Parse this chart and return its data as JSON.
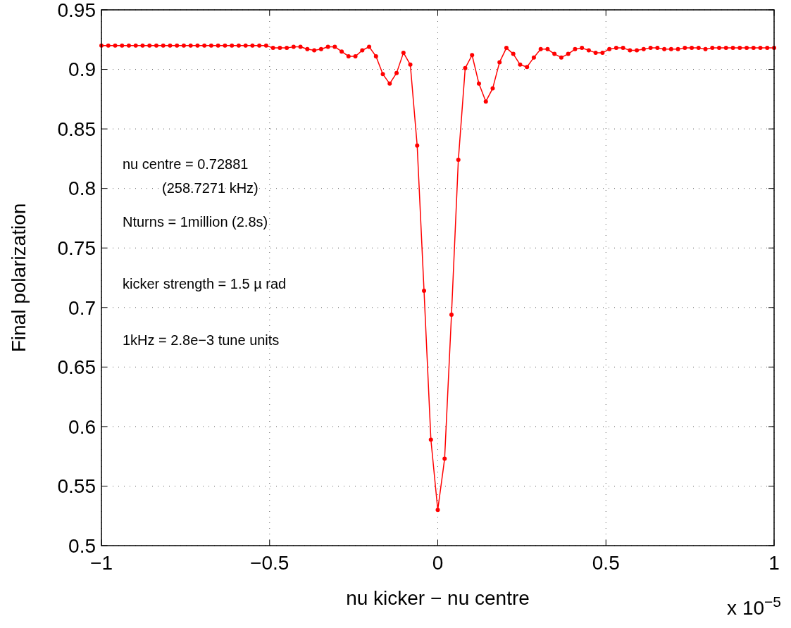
{
  "chart_data": {
    "type": "line",
    "xlabel": "nu kicker − nu centre",
    "ylabel": "Final polarization",
    "annotations": [
      "nu centre = 0.72881",
      "(258.7271 kHz)",
      "Nturns = 1million (2.8s)",
      "kicker strength = 1.5 µ rad",
      "1kHz = 2.8e−3 tune units",
      "x 10$^{−5}$"
    ],
    "x": [
      -1,
      -0.9796,
      -0.9592,
      -0.9388,
      -0.9184,
      -0.898,
      -0.8776,
      -0.8571,
      -0.8367,
      -0.8163,
      -0.7959,
      -0.7755,
      -0.7551,
      -0.7347,
      -0.7143,
      -0.6939,
      -0.6735,
      -0.6531,
      -0.6327,
      -0.6122,
      -0.5918,
      -0.5714,
      -0.551,
      -0.5306,
      -0.5102,
      -0.4898,
      -0.4694,
      -0.449,
      -0.4286,
      -0.4082,
      -0.3878,
      -0.3673,
      -0.3469,
      -0.3265,
      -0.3061,
      -0.2857,
      -0.2653,
      -0.2449,
      -0.2245,
      -0.2041,
      -0.1837,
      -0.1633,
      -0.1429,
      -0.1224,
      -0.102,
      -0.0816,
      -0.0612,
      -0.0408,
      -0.0204,
      0,
      0.0204,
      0.0408,
      0.0612,
      0.0816,
      0.102,
      0.1224,
      0.1429,
      0.1633,
      0.1837,
      0.2041,
      0.2245,
      0.2449,
      0.2653,
      0.2857,
      0.3061,
      0.3265,
      0.3469,
      0.3673,
      0.3878,
      0.4082,
      0.4286,
      0.449,
      0.4694,
      0.4898,
      0.5102,
      0.5306,
      0.551,
      0.5714,
      0.5918,
      0.6122,
      0.6327,
      0.6531,
      0.6735,
      0.6939,
      0.7143,
      0.7347,
      0.7551,
      0.7755,
      0.7959,
      0.8163,
      0.8367,
      0.8571,
      0.8776,
      0.898,
      0.9184,
      0.9388,
      0.9592,
      0.9796,
      1
    ],
    "series": [
      {
        "color": "#ff0000",
        "values": [
          0.92,
          0.92,
          0.92,
          0.92,
          0.92,
          0.92,
          0.92,
          0.92,
          0.92,
          0.92,
          0.92,
          0.92,
          0.92,
          0.92,
          0.92,
          0.92,
          0.92,
          0.92,
          0.92,
          0.92,
          0.92,
          0.92,
          0.92,
          0.92,
          0.92,
          0.918,
          0.918,
          0.918,
          0.919,
          0.919,
          0.917,
          0.916,
          0.917,
          0.919,
          0.919,
          0.915,
          0.911,
          0.911,
          0.916,
          0.919,
          0.911,
          0.896,
          0.888,
          0.897,
          0.914,
          0.904,
          0.836,
          0.714,
          0.589,
          0.53,
          0.573,
          0.694,
          0.824,
          0.901,
          0.912,
          0.888,
          0.873,
          0.884,
          0.906,
          0.918,
          0.913,
          0.904,
          0.902,
          0.91,
          0.917,
          0.917,
          0.913,
          0.91,
          0.913,
          0.917,
          0.918,
          0.916,
          0.914,
          0.914,
          0.917,
          0.918,
          0.918,
          0.916,
          0.916,
          0.917,
          0.918,
          0.918,
          0.917,
          0.917,
          0.917,
          0.918,
          0.918,
          0.918,
          0.917,
          0.918,
          0.918,
          0.918,
          0.918,
          0.918,
          0.918,
          0.918,
          0.918,
          0.918,
          0.918
        ]
      }
    ],
    "xlim": [
      -1,
      1
    ],
    "xticks": [
      {
        "value": -1,
        "label": "−1"
      },
      {
        "value": -0.5,
        "label": "−0.5"
      },
      0,
      0.5,
      1
    ],
    "ylim": [
      0.5,
      0.95
    ],
    "yticks": [
      0.5,
      0.55,
      0.6,
      0.65,
      0.7,
      0.75,
      0.8,
      0.85,
      0.9,
      0.95
    ],
    "grid": true,
    "marker": "circle",
    "line_style": "solid"
  }
}
